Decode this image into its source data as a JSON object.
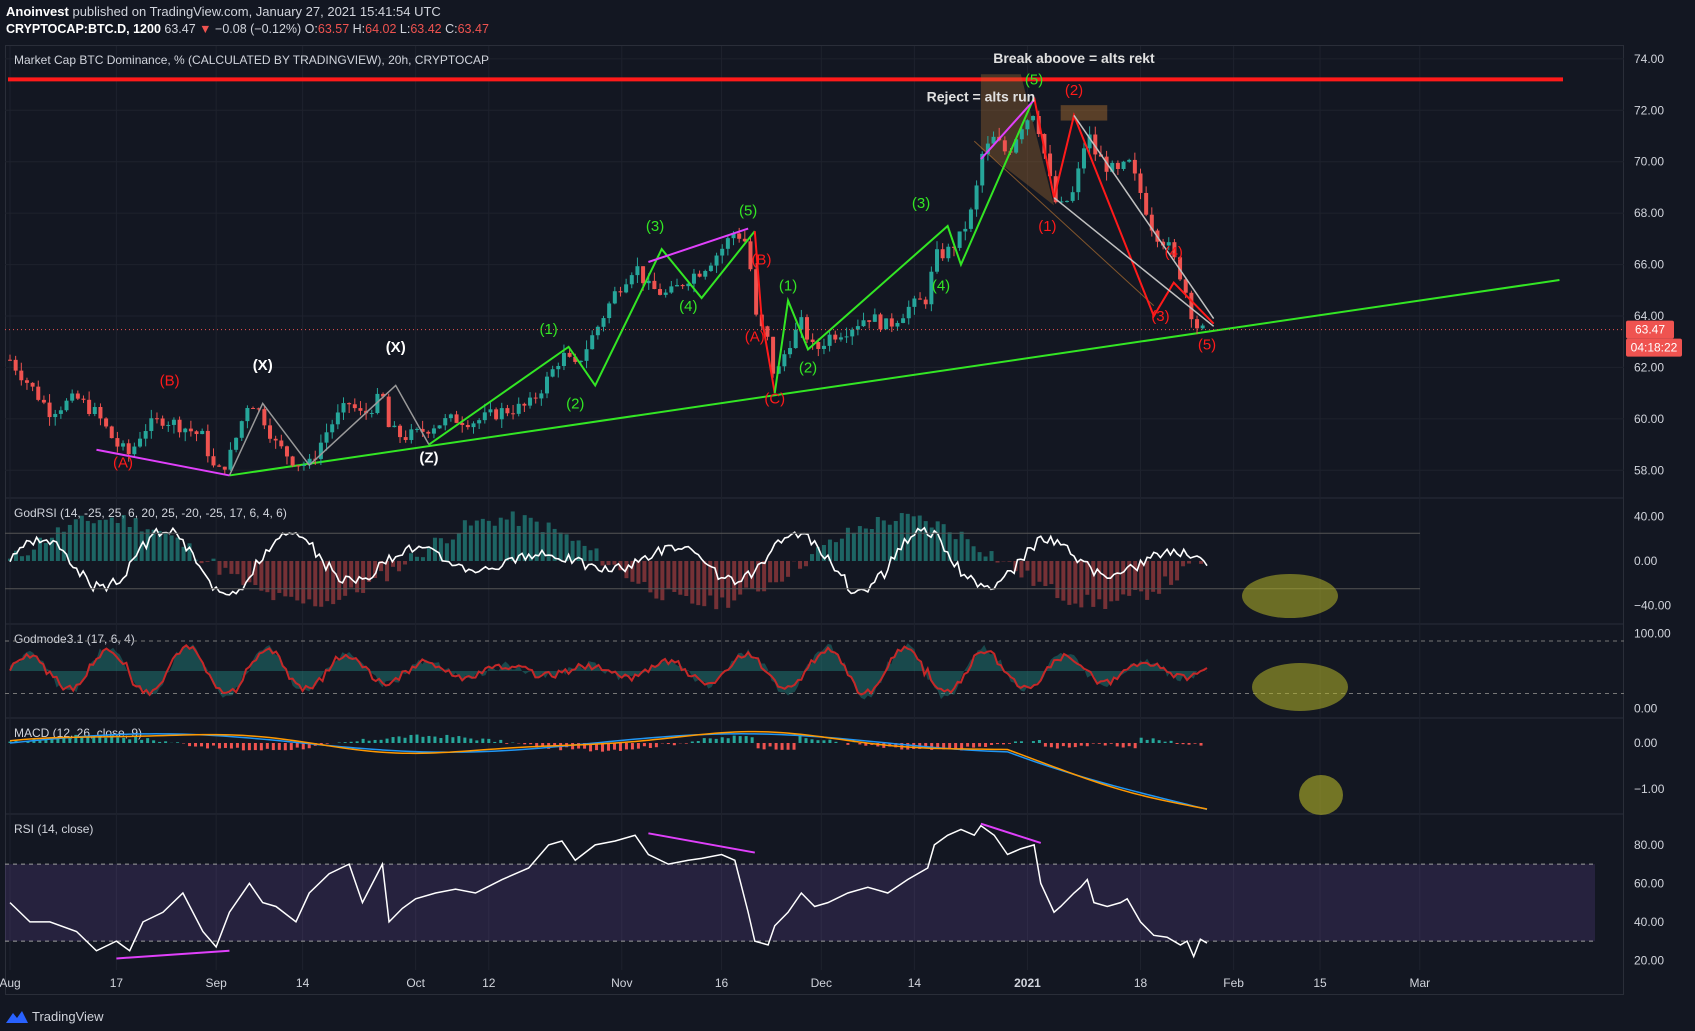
{
  "header": {
    "publisher_name": "Anoinvest",
    "published_text": "published on TradingView.com, January 27, 2021 15:41:54 UTC",
    "symbol": "CRYPTOCAP:BTC.D, 1200",
    "last": "63.47",
    "change": "−0.08 (−0.12%)",
    "ohlc_o_label": "O:",
    "ohlc_o": "63.57",
    "ohlc_h_label": "H:",
    "ohlc_h": "64.02",
    "ohlc_l_label": "L:",
    "ohlc_l": "63.42",
    "ohlc_c_label": "C:",
    "ohlc_c": "63.47"
  },
  "footer": {
    "brand": "TradingView"
  },
  "colors": {
    "background": "#131722",
    "grid": "#2a2e39",
    "up": "#26a69a",
    "down": "#ef5350",
    "wave_green": "#33e624",
    "wave_red": "#ff1a1a",
    "magenta": "#e040fb",
    "text": "#d1d4dc"
  },
  "chart_data": [
    {
      "type": "line",
      "title": "Market Cap BTC Dominance, % (CALCULATED BY TRADINGVIEW), 20h, CRYPTOCAP",
      "ylim": [
        57.0,
        74.5
      ],
      "y_ticks": [
        "74.00",
        "72.00",
        "70.00",
        "68.00",
        "66.00",
        "64.00",
        "62.00",
        "60.00",
        "58.00"
      ],
      "x_ticks": [
        "Aug",
        "17",
        "Sep",
        "14",
        "Oct",
        "12",
        "Nov",
        "16",
        "Dec",
        "14",
        "2021",
        "18",
        "Feb",
        "15",
        "Mar"
      ],
      "x_tick_days": [
        0,
        16,
        31,
        44,
        61,
        72,
        92,
        107,
        122,
        136,
        153,
        170,
        184,
        197,
        212
      ],
      "last_price_label": "63.47",
      "countdown_label": "04:18:22",
      "price_path": [
        [
          0,
          62.3
        ],
        [
          3,
          61.3
        ],
        [
          6,
          60.3
        ],
        [
          10,
          60.8
        ],
        [
          13,
          60.2
        ],
        [
          16,
          59.0
        ],
        [
          18,
          58.6
        ],
        [
          20,
          59.6
        ],
        [
          23,
          60.0
        ],
        [
          26,
          59.7
        ],
        [
          29,
          59.3
        ],
        [
          31,
          57.8
        ],
        [
          33,
          58.5
        ],
        [
          36,
          60.8
        ],
        [
          38,
          60.1
        ],
        [
          40,
          59.0
        ],
        [
          43,
          58.3
        ],
        [
          45,
          58.2
        ],
        [
          48,
          59.7
        ],
        [
          51,
          60.6
        ],
        [
          53,
          60.1
        ],
        [
          56,
          60.9
        ],
        [
          57,
          59.6
        ],
        [
          59,
          59.3
        ],
        [
          61,
          59.4
        ],
        [
          64,
          59.8
        ],
        [
          67,
          60.0
        ],
        [
          70,
          59.9
        ],
        [
          74,
          60.3
        ],
        [
          78,
          60.5
        ],
        [
          81,
          61.6
        ],
        [
          83,
          62.5
        ],
        [
          85,
          62.0
        ],
        [
          88,
          63.4
        ],
        [
          91,
          64.9
        ],
        [
          94,
          66.0
        ],
        [
          96,
          65.1
        ],
        [
          99,
          64.8
        ],
        [
          102,
          65.5
        ],
        [
          104,
          65.8
        ],
        [
          107,
          66.6
        ],
        [
          109,
          67.3
        ],
        [
          111,
          66.8
        ],
        [
          112,
          64.0
        ],
        [
          114,
          63.0
        ],
        [
          115,
          61.5
        ],
        [
          117,
          62.9
        ],
        [
          119,
          63.7
        ],
        [
          121,
          62.6
        ],
        [
          123,
          63.2
        ],
        [
          126,
          63.5
        ],
        [
          129,
          64.0
        ],
        [
          132,
          63.6
        ],
        [
          135,
          64.3
        ],
        [
          138,
          64.7
        ],
        [
          139,
          66.3
        ],
        [
          141,
          66.5
        ],
        [
          143,
          67.1
        ],
        [
          145,
          68.3
        ],
        [
          146,
          70.2
        ],
        [
          148,
          70.9
        ],
        [
          150,
          70.3
        ],
        [
          152,
          71.4
        ],
        [
          154,
          72.0
        ],
        [
          155,
          71.0
        ],
        [
          157,
          68.5
        ],
        [
          158,
          68.2
        ],
        [
          160,
          68.8
        ],
        [
          161,
          70.0
        ],
        [
          162,
          71.2
        ],
        [
          163,
          70.4
        ],
        [
          165,
          69.8
        ],
        [
          167,
          69.5
        ],
        [
          168,
          70.1
        ],
        [
          170,
          68.8
        ],
        [
          172,
          67.3
        ],
        [
          174,
          66.8
        ],
        [
          176,
          65.6
        ],
        [
          177,
          64.8
        ],
        [
          178,
          63.8
        ],
        [
          179,
          63.4
        ],
        [
          180,
          63.47
        ]
      ],
      "trendline": {
        "x": [
          33,
          233
        ],
        "y": [
          57.8,
          65.4
        ]
      },
      "resistance_level": 73.2,
      "wave_labels": [
        {
          "text": "(A)",
          "x": 17,
          "y": 58.1,
          "color": "#ff1a1a"
        },
        {
          "text": "(B)",
          "x": 24,
          "y": 61.3,
          "color": "#ff1a1a"
        },
        {
          "text": "(X)",
          "x": 38,
          "y": 61.9,
          "color": "#ffffff"
        },
        {
          "text": "(X)",
          "x": 58,
          "y": 62.6,
          "color": "#ffffff"
        },
        {
          "text": "(Z)",
          "x": 63,
          "y": 58.3,
          "color": "#ffffff"
        },
        {
          "text": "(1)",
          "x": 81,
          "y": 63.3,
          "color": "#33e624"
        },
        {
          "text": "(2)",
          "x": 85,
          "y": 60.4,
          "color": "#33e624"
        },
        {
          "text": "(3)",
          "x": 97,
          "y": 67.3,
          "color": "#33e624"
        },
        {
          "text": "(4)",
          "x": 102,
          "y": 64.2,
          "color": "#33e624"
        },
        {
          "text": "(5)",
          "x": 111,
          "y": 67.9,
          "color": "#33e624"
        },
        {
          "text": "(B)",
          "x": 113,
          "y": 66.0,
          "color": "#ff1a1a"
        },
        {
          "text": "(A)",
          "x": 112,
          "y": 63.0,
          "color": "#ff1a1a"
        },
        {
          "text": "(C)",
          "x": 115,
          "y": 60.6,
          "color": "#ff1a1a"
        },
        {
          "text": "(1)",
          "x": 117,
          "y": 65.0,
          "color": "#33e624"
        },
        {
          "text": "(2)",
          "x": 120,
          "y": 61.8,
          "color": "#33e624"
        },
        {
          "text": "(3)",
          "x": 137,
          "y": 68.2,
          "color": "#33e624"
        },
        {
          "text": "(4)",
          "x": 140,
          "y": 65.0,
          "color": "#33e624"
        },
        {
          "text": "(5)",
          "x": 154,
          "y": 73.0,
          "color": "#33e624"
        },
        {
          "text": "(2)",
          "x": 160,
          "y": 72.6,
          "color": "#ff1a1a"
        },
        {
          "text": "(1)",
          "x": 156,
          "y": 67.3,
          "color": "#ff1a1a"
        },
        {
          "text": "(4)",
          "x": 175,
          "y": 66.3,
          "color": "#ff1a1a"
        },
        {
          "text": "(3)",
          "x": 173,
          "y": 63.8,
          "color": "#ff1a1a"
        },
        {
          "text": "(5)",
          "x": 180,
          "y": 62.7,
          "color": "#ff1a1a"
        }
      ],
      "annotations": [
        {
          "text": "Break aboove = alts rekt",
          "x": 160,
          "y": 74.0
        },
        {
          "text": "Reject = alts run",
          "x": 146,
          "y": 72.5
        }
      ]
    },
    {
      "type": "line",
      "title": "GodRSI (14, -25, 25, 6, 20, 25, -20, -25, 17, 6, 4, 6)",
      "y_ticks": [
        "40.00",
        "0.00",
        "−40.00"
      ],
      "ylim": [
        -55,
        55
      ]
    },
    {
      "type": "line",
      "title": "Godmode3.1 (17, 6, 4)",
      "y_ticks": [
        "100.00",
        "0.00"
      ],
      "ylim": [
        -10,
        110
      ]
    },
    {
      "type": "bar",
      "title": "MACD (12, 26, close, 9)",
      "y_ticks": [
        "0.00",
        "−1.00"
      ],
      "ylim": [
        -1.5,
        0.5
      ]
    },
    {
      "type": "line",
      "title": "RSI (14, close)",
      "y_ticks": [
        "80.00",
        "60.00",
        "40.00",
        "20.00"
      ],
      "ylim": [
        15,
        95
      ],
      "bands": [
        30,
        70
      ],
      "series": [
        {
          "name": "",
          "values": [
            [
              0,
              50
            ],
            [
              3,
              40
            ],
            [
              6,
              40
            ],
            [
              10,
              35
            ],
            [
              13,
              25
            ],
            [
              16,
              30
            ],
            [
              18,
              25
            ],
            [
              20,
              40
            ],
            [
              23,
              45
            ],
            [
              26,
              55
            ],
            [
              29,
              35
            ],
            [
              31,
              27
            ],
            [
              33,
              45
            ],
            [
              36,
              60
            ],
            [
              38,
              50
            ],
            [
              40,
              48
            ],
            [
              43,
              40
            ],
            [
              45,
              55
            ],
            [
              48,
              65
            ],
            [
              51,
              70
            ],
            [
              53,
              50
            ],
            [
              56,
              70
            ],
            [
              57,
              40
            ],
            [
              59,
              47
            ],
            [
              61,
              52
            ],
            [
              64,
              55
            ],
            [
              67,
              57
            ],
            [
              70,
              55
            ],
            [
              74,
              62
            ],
            [
              78,
              68
            ],
            [
              81,
              80
            ],
            [
              83,
              82
            ],
            [
              85,
              72
            ],
            [
              88,
              80
            ],
            [
              91,
              82
            ],
            [
              94,
              85
            ],
            [
              96,
              75
            ],
            [
              99,
              70
            ],
            [
              102,
              72
            ],
            [
              104,
              73
            ],
            [
              107,
              75
            ],
            [
              109,
              72
            ],
            [
              111,
              45
            ],
            [
              112,
              30
            ],
            [
              114,
              28
            ],
            [
              115,
              38
            ],
            [
              117,
              45
            ],
            [
              119,
              55
            ],
            [
              121,
              48
            ],
            [
              123,
              50
            ],
            [
              126,
              55
            ],
            [
              129,
              58
            ],
            [
              132,
              55
            ],
            [
              135,
              62
            ],
            [
              138,
              68
            ],
            [
              139,
              80
            ],
            [
              141,
              85
            ],
            [
              143,
              88
            ],
            [
              145,
              85
            ],
            [
              146,
              90
            ],
            [
              148,
              85
            ],
            [
              150,
              75
            ],
            [
              152,
              78
            ],
            [
              154,
              80
            ],
            [
              155,
              60
            ],
            [
              157,
              45
            ],
            [
              158,
              48
            ],
            [
              160,
              55
            ],
            [
              161,
              58
            ],
            [
              162,
              62
            ],
            [
              163,
              50
            ],
            [
              165,
              48
            ],
            [
              167,
              50
            ],
            [
              168,
              52
            ],
            [
              170,
              40
            ],
            [
              172,
              33
            ],
            [
              174,
              32
            ],
            [
              176,
              28
            ],
            [
              177,
              30
            ],
            [
              178,
              22
            ],
            [
              179,
              31
            ],
            [
              180,
              29
            ]
          ]
        }
      ]
    }
  ]
}
